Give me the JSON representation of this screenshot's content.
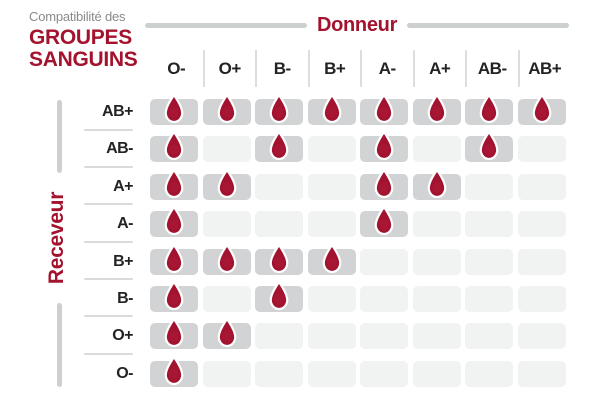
{
  "title": {
    "line1": "Compatibilité des",
    "line2": "GROUPES",
    "line3": "SANGUINS"
  },
  "axes": {
    "donor_label": "Donneur",
    "recipient_label": "Receveur"
  },
  "donors": [
    "O-",
    "O+",
    "B-",
    "B+",
    "A-",
    "A+",
    "AB-",
    "AB+"
  ],
  "recipients": [
    "AB+",
    "AB-",
    "A+",
    "A-",
    "B+",
    "B-",
    "O+",
    "O-"
  ],
  "icons": {
    "compatible": "blood-drop-icon"
  },
  "colors": {
    "accent_red": "#a4132e",
    "drop_fill": "#a21330",
    "drop_stroke": "#ffffff",
    "cell_filled": "#d2d3d4",
    "cell_empty": "#f1f2f2",
    "axis_bar_gray": "#cdd0d1",
    "title_gray": "#8a8a8b",
    "text_dark": "#232323"
  },
  "chart_data": {
    "type": "heatmap",
    "title": "Compatibilité des GROUPES SANGUINS",
    "x_label": "Donneur",
    "y_label": "Receveur",
    "columns": [
      "O-",
      "O+",
      "B-",
      "B+",
      "A-",
      "A+",
      "AB-",
      "AB+"
    ],
    "rows": [
      "AB+",
      "AB-",
      "A+",
      "A-",
      "B+",
      "B-",
      "O+",
      "O-"
    ],
    "matrix": [
      [
        1,
        1,
        1,
        1,
        1,
        1,
        1,
        1
      ],
      [
        1,
        0,
        1,
        0,
        1,
        0,
        1,
        0
      ],
      [
        1,
        1,
        0,
        0,
        1,
        1,
        0,
        0
      ],
      [
        1,
        0,
        0,
        0,
        1,
        0,
        0,
        0
      ],
      [
        1,
        1,
        1,
        1,
        0,
        0,
        0,
        0
      ],
      [
        1,
        0,
        1,
        0,
        0,
        0,
        0,
        0
      ],
      [
        1,
        1,
        0,
        0,
        0,
        0,
        0,
        0
      ],
      [
        1,
        0,
        0,
        0,
        0,
        0,
        0,
        0
      ]
    ],
    "value_meaning": "1 = compatible (blood drop shown on gray cell), 0 = not compatible (empty light cell)"
  }
}
